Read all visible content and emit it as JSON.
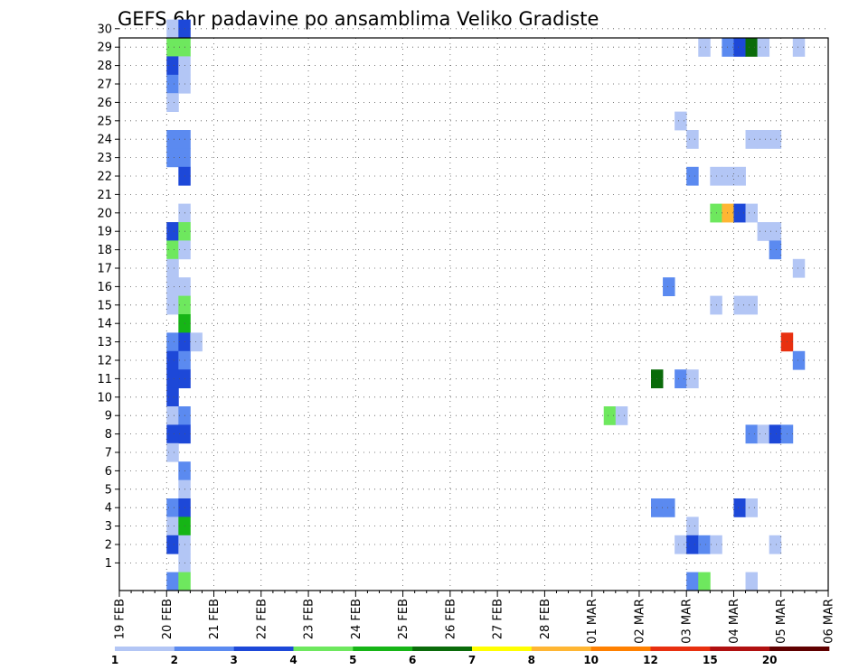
{
  "chart_data": {
    "type": "heatmap",
    "title": "GEFS 6hr padavine po ansamblima Veliko Gradiste",
    "y_ticks": [
      "1",
      "2",
      "3",
      "4",
      "5",
      "6",
      "7",
      "8",
      "9",
      "10",
      "11",
      "12",
      "13",
      "14",
      "15",
      "16",
      "17",
      "18",
      "19",
      "20",
      "21",
      "22",
      "23",
      "24",
      "25",
      "26",
      "27",
      "28",
      "29",
      "30"
    ],
    "x_ticks": [
      "19 FEB",
      "20 FEB",
      "21 FEB",
      "22 FEB",
      "23 FEB",
      "24 FEB",
      "25 FEB",
      "26 FEB",
      "27 FEB",
      "28 FEB",
      "01 MAR",
      "02 MAR",
      "03 MAR",
      "04 MAR",
      "05 MAR",
      "06 MAR"
    ],
    "colorbar": {
      "labels": [
        "1",
        "2",
        "3",
        "4",
        "5",
        "6",
        "7",
        "8",
        "10",
        "12",
        "15",
        "20"
      ],
      "colors": [
        "#b3c6f5",
        "#5b8af0",
        "#1d48d8",
        "#6ee85e",
        "#16b516",
        "#0a6b0a",
        "#ffff00",
        "#ffb633",
        "#ff8000",
        "#e83010",
        "#b01010",
        "#600000"
      ]
    },
    "grid": true,
    "cells": [
      {
        "member": 30,
        "step": 4,
        "value": 1.5
      },
      {
        "member": 30,
        "step": 5,
        "value": 3.5
      },
      {
        "member": 29,
        "step": 4,
        "value": 4.5
      },
      {
        "member": 29,
        "step": 5,
        "value": 4.5
      },
      {
        "member": 29,
        "step": 49,
        "value": 1.5
      },
      {
        "member": 29,
        "step": 51,
        "value": 2.5
      },
      {
        "member": 29,
        "step": 52,
        "value": 3.5
      },
      {
        "member": 29,
        "step": 53,
        "value": 6.5
      },
      {
        "member": 29,
        "step": 54,
        "value": 1.5
      },
      {
        "member": 29,
        "step": 57,
        "value": 1.5
      },
      {
        "member": 28,
        "step": 4,
        "value": 3.5
      },
      {
        "member": 28,
        "step": 5,
        "value": 1.5
      },
      {
        "member": 27,
        "step": 4,
        "value": 2.5
      },
      {
        "member": 27,
        "step": 5,
        "value": 1.5
      },
      {
        "member": 26,
        "step": 4,
        "value": 1.5
      },
      {
        "member": 25,
        "step": 47,
        "value": 1.5
      },
      {
        "member": 24,
        "step": 4,
        "value": 2.5
      },
      {
        "member": 24,
        "step": 5,
        "value": 2.5
      },
      {
        "member": 24,
        "step": 48,
        "value": 1.5
      },
      {
        "member": 24,
        "step": 53,
        "value": 1.5
      },
      {
        "member": 24,
        "step": 54,
        "value": 1.5
      },
      {
        "member": 24,
        "step": 55,
        "value": 1.5
      },
      {
        "member": 23,
        "step": 4,
        "value": 2.5
      },
      {
        "member": 23,
        "step": 5,
        "value": 2.5
      },
      {
        "member": 22,
        "step": 5,
        "value": 3.5
      },
      {
        "member": 22,
        "step": 48,
        "value": 2.5
      },
      {
        "member": 22,
        "step": 50,
        "value": 1.5
      },
      {
        "member": 22,
        "step": 51,
        "value": 1.5
      },
      {
        "member": 22,
        "step": 52,
        "value": 1.5
      },
      {
        "member": 20,
        "step": 5,
        "value": 1.5
      },
      {
        "member": 20,
        "step": 50,
        "value": 4.5
      },
      {
        "member": 20,
        "step": 51,
        "value": 9
      },
      {
        "member": 20,
        "step": 52,
        "value": 3.5
      },
      {
        "member": 20,
        "step": 53,
        "value": 1.5
      },
      {
        "member": 19,
        "step": 4,
        "value": 3.5
      },
      {
        "member": 19,
        "step": 5,
        "value": 4.5
      },
      {
        "member": 19,
        "step": 54,
        "value": 1.5
      },
      {
        "member": 19,
        "step": 55,
        "value": 1.5
      },
      {
        "member": 18,
        "step": 4,
        "value": 4.5
      },
      {
        "member": 18,
        "step": 5,
        "value": 1.5
      },
      {
        "member": 18,
        "step": 55,
        "value": 2.5
      },
      {
        "member": 17,
        "step": 4,
        "value": 1.5
      },
      {
        "member": 17,
        "step": 57,
        "value": 1.5
      },
      {
        "member": 16,
        "step": 4,
        "value": 1.5
      },
      {
        "member": 16,
        "step": 5,
        "value": 1.5
      },
      {
        "member": 16,
        "step": 46,
        "value": 2.5
      },
      {
        "member": 15,
        "step": 4,
        "value": 1.5
      },
      {
        "member": 15,
        "step": 5,
        "value": 4.5
      },
      {
        "member": 15,
        "step": 50,
        "value": 1.5
      },
      {
        "member": 15,
        "step": 52,
        "value": 1.5
      },
      {
        "member": 15,
        "step": 53,
        "value": 1.5
      },
      {
        "member": 14,
        "step": 5,
        "value": 5.5
      },
      {
        "member": 13,
        "step": 4,
        "value": 2.5
      },
      {
        "member": 13,
        "step": 5,
        "value": 3.5
      },
      {
        "member": 13,
        "step": 6,
        "value": 1.5
      },
      {
        "member": 13,
        "step": 56,
        "value": 13
      },
      {
        "member": 12,
        "step": 4,
        "value": 3.5
      },
      {
        "member": 12,
        "step": 5,
        "value": 2.5
      },
      {
        "member": 12,
        "step": 57,
        "value": 2.5
      },
      {
        "member": 11,
        "step": 4,
        "value": 3.5
      },
      {
        "member": 11,
        "step": 5,
        "value": 3.5
      },
      {
        "member": 11,
        "step": 45,
        "value": 6.5
      },
      {
        "member": 11,
        "step": 47,
        "value": 2.5
      },
      {
        "member": 11,
        "step": 48,
        "value": 1.5
      },
      {
        "member": 10,
        "step": 4,
        "value": 3.5
      },
      {
        "member": 9,
        "step": 4,
        "value": 1.5
      },
      {
        "member": 9,
        "step": 5,
        "value": 2.5
      },
      {
        "member": 9,
        "step": 41,
        "value": 4.5
      },
      {
        "member": 9,
        "step": 42,
        "value": 1.5
      },
      {
        "member": 8,
        "step": 4,
        "value": 3.5
      },
      {
        "member": 8,
        "step": 5,
        "value": 3.5
      },
      {
        "member": 8,
        "step": 53,
        "value": 2.5
      },
      {
        "member": 8,
        "step": 54,
        "value": 1.5
      },
      {
        "member": 8,
        "step": 55,
        "value": 3.5
      },
      {
        "member": 8,
        "step": 56,
        "value": 2.5
      },
      {
        "member": 7,
        "step": 4,
        "value": 1.5
      },
      {
        "member": 6,
        "step": 5,
        "value": 2.5
      },
      {
        "member": 5,
        "step": 5,
        "value": 1.5
      },
      {
        "member": 4,
        "step": 4,
        "value": 2.5
      },
      {
        "member": 4,
        "step": 5,
        "value": 3.5
      },
      {
        "member": 4,
        "step": 45,
        "value": 2.5
      },
      {
        "member": 4,
        "step": 46,
        "value": 2.5
      },
      {
        "member": 4,
        "step": 52,
        "value": 3.5
      },
      {
        "member": 4,
        "step": 53,
        "value": 1.5
      },
      {
        "member": 3,
        "step": 4,
        "value": 1.5
      },
      {
        "member": 3,
        "step": 5,
        "value": 5.5
      },
      {
        "member": 3,
        "step": 48,
        "value": 1.5
      },
      {
        "member": 2,
        "step": 4,
        "value": 3.5
      },
      {
        "member": 2,
        "step": 5,
        "value": 1.5
      },
      {
        "member": 2,
        "step": 47,
        "value": 1.5
      },
      {
        "member": 2,
        "step": 48,
        "value": 3.5
      },
      {
        "member": 2,
        "step": 49,
        "value": 2.5
      },
      {
        "member": 2,
        "step": 50,
        "value": 1.5
      },
      {
        "member": 2,
        "step": 55,
        "value": 1.5
      },
      {
        "member": 1,
        "step": 5,
        "value": 1.5
      },
      {
        "member": 0,
        "step": 4,
        "value": 2.5
      },
      {
        "member": 0,
        "step": 5,
        "value": 4.5
      },
      {
        "member": 0,
        "step": 48,
        "value": 2.5
      },
      {
        "member": 0,
        "step": 49,
        "value": 4.5
      },
      {
        "member": 0,
        "step": 53,
        "value": 1.5
      }
    ]
  }
}
